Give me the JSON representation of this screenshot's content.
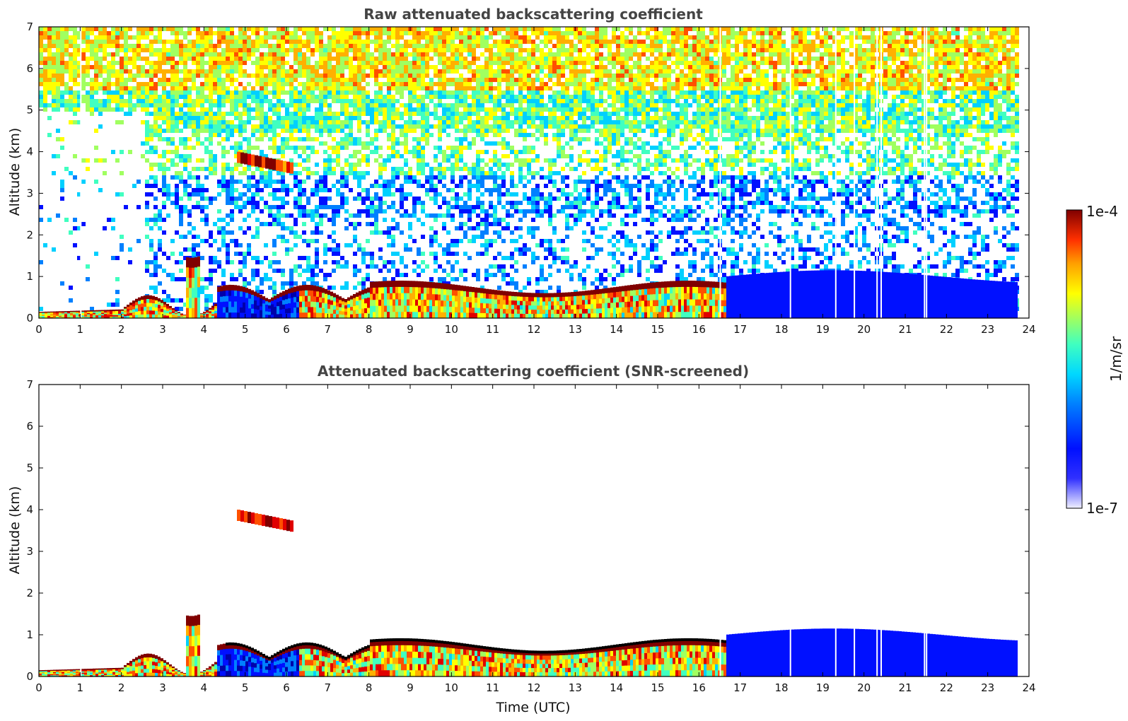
{
  "chart_data": [
    {
      "type": "heatmap",
      "title": "Raw attenuated backscattering coefficient",
      "xlabel": "",
      "ylabel": "Altitude (km)",
      "xlim": [
        0,
        24
      ],
      "ylim": [
        0,
        7
      ],
      "xticks": [
        "0",
        "1",
        "2",
        "3",
        "4",
        "5",
        "6",
        "7",
        "8",
        "9",
        "10",
        "11",
        "12",
        "13",
        "14",
        "15",
        "16",
        "17",
        "18",
        "19",
        "20",
        "21",
        "22",
        "23",
        "24"
      ],
      "yticks": [
        "0",
        "1",
        "2",
        "3",
        "4",
        "5",
        "6",
        "7"
      ],
      "data_end_hour": 23.7,
      "noise": "high",
      "features": [
        {
          "name": "boundary layer aerosol",
          "t_start": 0,
          "t_end": 16.6,
          "top_km": 0.9
        },
        {
          "name": "elevated layer",
          "t_start": 4.8,
          "t_end": 6.1,
          "top_km": 4.0,
          "bottom_km": 3.5
        },
        {
          "name": "convective plume",
          "t_start": 3.5,
          "t_end": 3.9,
          "top_km": 1.8
        },
        {
          "name": "low-signal layer",
          "t_start": 16.6,
          "t_end": 23.7,
          "top_km": 1.2
        }
      ]
    },
    {
      "type": "heatmap",
      "title": "Attenuated backscattering coefficient (SNR-screened)",
      "xlabel": "Time (UTC)",
      "ylabel": "Altitude (km)",
      "xlim": [
        0,
        24
      ],
      "ylim": [
        0,
        7
      ],
      "xticks": [
        "0",
        "1",
        "2",
        "3",
        "4",
        "5",
        "6",
        "7",
        "8",
        "9",
        "10",
        "11",
        "12",
        "13",
        "14",
        "15",
        "16",
        "17",
        "18",
        "19",
        "20",
        "21",
        "22",
        "23",
        "24"
      ],
      "yticks": [
        "0",
        "1",
        "2",
        "3",
        "4",
        "5",
        "6",
        "7"
      ],
      "data_end_hour": 23.7,
      "noise": "screened"
    }
  ],
  "colorbar": {
    "label": "1/m/sr",
    "min_label": "1e-7",
    "max_label": "1e-4",
    "colors": [
      "#0000aa",
      "#0010ff",
      "#0080ff",
      "#00d0ff",
      "#40ffc0",
      "#a0ff60",
      "#ffff00",
      "#ffb000",
      "#ff5000",
      "#e00000",
      "#800000"
    ]
  }
}
